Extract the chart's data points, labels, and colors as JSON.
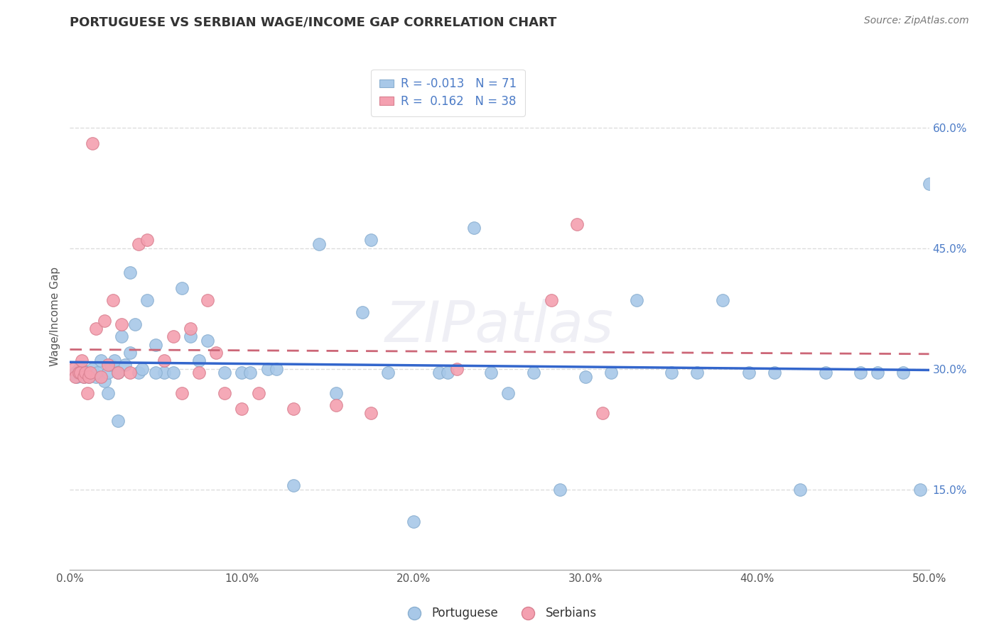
{
  "title": "PORTUGUESE VS SERBIAN WAGE/INCOME GAP CORRELATION CHART",
  "source_text": "Source: ZipAtlas.com",
  "ylabel": "Wage/Income Gap",
  "xlim": [
    0.0,
    0.5
  ],
  "ylim": [
    0.05,
    0.68
  ],
  "yticks": [
    0.15,
    0.3,
    0.45,
    0.6
  ],
  "ytick_labels": [
    "15.0%",
    "30.0%",
    "45.0%",
    "60.0%"
  ],
  "xticks": [
    0.0,
    0.1,
    0.2,
    0.3,
    0.4,
    0.5
  ],
  "xtick_labels": [
    "0.0%",
    "10.0%",
    "20.0%",
    "30.0%",
    "40.0%",
    "50.0%"
  ],
  "blue_color": "#a8c8e8",
  "pink_color": "#f4a0b0",
  "blue_line_color": "#3366cc",
  "pink_line_color": "#cc6677",
  "legend_blue_label": "R = -0.013   N = 71",
  "legend_pink_label": "R =  0.162   N = 38",
  "watermark": "ZIPatlas",
  "background_color": "#ffffff",
  "grid_color": "#dddddd",
  "blue_x": [
    0.003,
    0.004,
    0.005,
    0.006,
    0.007,
    0.008,
    0.009,
    0.01,
    0.011,
    0.012,
    0.013,
    0.015,
    0.016,
    0.018,
    0.02,
    0.022,
    0.024,
    0.026,
    0.028,
    0.03,
    0.032,
    0.035,
    0.038,
    0.04,
    0.042,
    0.045,
    0.05,
    0.055,
    0.06,
    0.065,
    0.07,
    0.075,
    0.08,
    0.09,
    0.1,
    0.105,
    0.115,
    0.12,
    0.13,
    0.145,
    0.155,
    0.17,
    0.185,
    0.2,
    0.215,
    0.235,
    0.255,
    0.27,
    0.285,
    0.3,
    0.315,
    0.33,
    0.35,
    0.365,
    0.38,
    0.395,
    0.41,
    0.425,
    0.44,
    0.46,
    0.47,
    0.485,
    0.495,
    0.5,
    0.022,
    0.028,
    0.035,
    0.05,
    0.175,
    0.22,
    0.245
  ],
  "blue_y": [
    0.295,
    0.29,
    0.3,
    0.295,
    0.3,
    0.29,
    0.295,
    0.295,
    0.29,
    0.295,
    0.3,
    0.29,
    0.295,
    0.31,
    0.285,
    0.295,
    0.305,
    0.31,
    0.295,
    0.34,
    0.305,
    0.32,
    0.355,
    0.295,
    0.3,
    0.385,
    0.33,
    0.295,
    0.295,
    0.4,
    0.34,
    0.31,
    0.335,
    0.295,
    0.295,
    0.295,
    0.3,
    0.3,
    0.155,
    0.455,
    0.27,
    0.37,
    0.295,
    0.11,
    0.295,
    0.475,
    0.27,
    0.295,
    0.15,
    0.29,
    0.295,
    0.385,
    0.295,
    0.295,
    0.385,
    0.295,
    0.295,
    0.15,
    0.295,
    0.295,
    0.295,
    0.295,
    0.15,
    0.53,
    0.27,
    0.235,
    0.42,
    0.295,
    0.46,
    0.295,
    0.295
  ],
  "pink_x": [
    0.002,
    0.003,
    0.005,
    0.006,
    0.007,
    0.008,
    0.009,
    0.01,
    0.011,
    0.012,
    0.013,
    0.015,
    0.018,
    0.02,
    0.022,
    0.025,
    0.028,
    0.03,
    0.035,
    0.04,
    0.045,
    0.055,
    0.06,
    0.065,
    0.07,
    0.075,
    0.08,
    0.085,
    0.09,
    0.1,
    0.11,
    0.13,
    0.155,
    0.175,
    0.225,
    0.28,
    0.295,
    0.31
  ],
  "pink_y": [
    0.3,
    0.29,
    0.295,
    0.295,
    0.31,
    0.29,
    0.295,
    0.27,
    0.29,
    0.295,
    0.58,
    0.35,
    0.29,
    0.36,
    0.305,
    0.385,
    0.295,
    0.355,
    0.295,
    0.455,
    0.46,
    0.31,
    0.34,
    0.27,
    0.35,
    0.295,
    0.385,
    0.32,
    0.27,
    0.25,
    0.27,
    0.25,
    0.255,
    0.245,
    0.3,
    0.385,
    0.48,
    0.245
  ]
}
